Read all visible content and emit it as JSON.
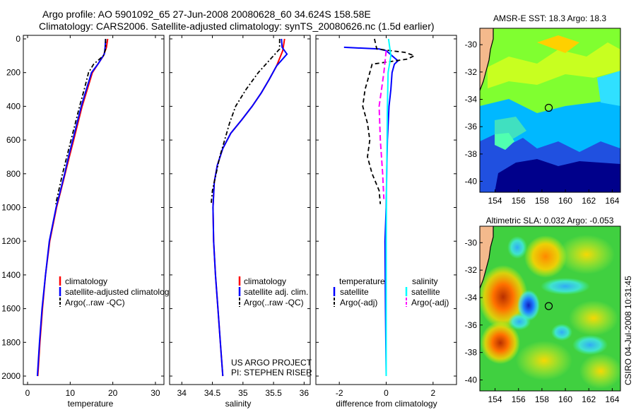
{
  "title_line1": "Argo profile: AO 5901092_65 27-Jun-2008 20080628_60 34.624S 158.58E",
  "title_line2": "Climatology: CARS2006. Satellite-adjusted climatology: synTS_20080626.nc (1.5d earlier)",
  "side_label": "CSIRO 04-Jul-2008 10:31:45",
  "colors": {
    "red": "#ff0000",
    "blue": "#0000ff",
    "black": "#000000",
    "cyan": "#00ffff",
    "magenta": "#ff00ff",
    "land": "#f4b98c",
    "sea_dark": "#00008b"
  },
  "chart_data": [
    {
      "type": "line",
      "xlabel": "temperature",
      "ylabel": "",
      "xlim": [
        -1,
        32
      ],
      "ylim": [
        2000,
        0
      ],
      "xticks": [
        "0",
        "10",
        "20",
        "30"
      ],
      "yticks": [
        "0",
        "200",
        "400",
        "600",
        "800",
        "1000",
        "1200",
        "1400",
        "1600",
        "1800",
        "2000"
      ],
      "legend": [
        "climatology",
        "satellite-adjusted climatology",
        "Argo(..raw -QC)"
      ],
      "series": [
        {
          "name": "climatology",
          "color": "red",
          "dash": "",
          "points": [
            [
              18.8,
              0
            ],
            [
              18.5,
              50
            ],
            [
              17.8,
              100
            ],
            [
              16.5,
              150
            ],
            [
              15.2,
              200
            ],
            [
              14,
              300
            ],
            [
              12.8,
              400
            ],
            [
              11.8,
              500
            ],
            [
              10.8,
              600
            ],
            [
              9.8,
              700
            ],
            [
              8.8,
              800
            ],
            [
              7.8,
              900
            ],
            [
              6.8,
              1000
            ],
            [
              5.2,
              1200
            ],
            [
              4.2,
              1400
            ],
            [
              3.5,
              1600
            ],
            [
              2.9,
              1800
            ],
            [
              2.4,
              2000
            ]
          ]
        },
        {
          "name": "satellite-adjusted",
          "color": "blue",
          "dash": "",
          "points": [
            [
              18.3,
              0
            ],
            [
              18.2,
              50
            ],
            [
              18,
              90
            ],
            [
              16.5,
              150
            ],
            [
              15,
              200
            ],
            [
              13.8,
              300
            ],
            [
              12.6,
              400
            ],
            [
              11.6,
              500
            ],
            [
              10.6,
              600
            ],
            [
              9.6,
              700
            ],
            [
              8.7,
              800
            ],
            [
              7.7,
              900
            ],
            [
              6.7,
              1000
            ],
            [
              5.1,
              1200
            ],
            [
              4.2,
              1400
            ],
            [
              3.4,
              1600
            ],
            [
              2.8,
              1800
            ],
            [
              2.3,
              2000
            ]
          ]
        },
        {
          "name": "argo",
          "color": "black",
          "dash": "6,3,2,3",
          "points": [
            [
              18.3,
              0
            ],
            [
              18.3,
              60
            ],
            [
              17.8,
              100
            ],
            [
              15.5,
              150
            ],
            [
              14.3,
              200
            ],
            [
              13.3,
              300
            ],
            [
              12.2,
              400
            ],
            [
              11.2,
              500
            ],
            [
              10.2,
              600
            ],
            [
              9.2,
              700
            ],
            [
              8.2,
              800
            ],
            [
              7.3,
              900
            ],
            [
              6.6,
              980
            ]
          ]
        }
      ]
    },
    {
      "type": "line",
      "xlabel": "salinity",
      "ylabel": "",
      "xlim": [
        33.8,
        36.1
      ],
      "ylim": [
        2000,
        0
      ],
      "xticks": [
        "34",
        "34.5",
        "35",
        "35.5",
        "36"
      ],
      "yticks": [],
      "legend": [
        "climatology",
        "satellite adj. clim.",
        "Argo(..raw -QC)"
      ],
      "annotations": [
        "US ARGO PROJECT",
        "PI: STEPHEN RISER"
      ],
      "series": [
        {
          "name": "climatology",
          "color": "red",
          "dash": "",
          "points": [
            [
              35.68,
              0
            ],
            [
              35.65,
              70
            ],
            [
              35.55,
              160
            ],
            [
              35.43,
              240
            ],
            [
              35.3,
              320
            ],
            [
              35.15,
              400
            ],
            [
              34.98,
              480
            ],
            [
              34.8,
              560
            ],
            [
              34.67,
              650
            ],
            [
              34.58,
              750
            ],
            [
              34.53,
              850
            ],
            [
              34.51,
              1000
            ],
            [
              34.52,
              1200
            ],
            [
              34.55,
              1400
            ],
            [
              34.59,
              1600
            ],
            [
              34.63,
              1800
            ],
            [
              34.67,
              2000
            ]
          ]
        },
        {
          "name": "satellite-adjusted",
          "color": "blue",
          "dash": "",
          "points": [
            [
              35.63,
              0
            ],
            [
              35.64,
              50
            ],
            [
              35.72,
              90
            ],
            [
              35.55,
              160
            ],
            [
              35.43,
              240
            ],
            [
              35.3,
              320
            ],
            [
              35.15,
              400
            ],
            [
              34.98,
              480
            ],
            [
              34.8,
              560
            ],
            [
              34.67,
              650
            ],
            [
              34.58,
              750
            ],
            [
              34.53,
              850
            ],
            [
              34.51,
              1000
            ],
            [
              34.52,
              1200
            ],
            [
              34.55,
              1400
            ],
            [
              34.59,
              1600
            ],
            [
              34.63,
              1800
            ],
            [
              34.67,
              2000
            ]
          ]
        },
        {
          "name": "argo",
          "color": "black",
          "dash": "6,3,2,3",
          "points": [
            [
              35.6,
              0
            ],
            [
              35.6,
              60
            ],
            [
              35.5,
              100
            ],
            [
              35.25,
              200
            ],
            [
              35.05,
              300
            ],
            [
              34.88,
              400
            ],
            [
              34.78,
              500
            ],
            [
              34.7,
              600
            ],
            [
              34.62,
              700
            ],
            [
              34.56,
              800
            ],
            [
              34.5,
              900
            ],
            [
              34.48,
              980
            ]
          ]
        }
      ]
    },
    {
      "type": "line",
      "xlabel": "difference from climatology",
      "ylabel": "",
      "xlim": [
        -3,
        3
      ],
      "ylim": [
        2000,
        0
      ],
      "xticks": [
        "-2",
        "0",
        "2"
      ],
      "yticks": [],
      "legend_headers": [
        "temperature",
        "salinity"
      ],
      "legend": [
        "satellite",
        "Argo(-adj)",
        "satellite",
        "Argo(-adj)"
      ],
      "series": [
        {
          "name": "temperature satellite",
          "color": "blue",
          "dash": "",
          "points": [
            [
              -1.8,
              50
            ],
            [
              -0.3,
              60
            ],
            [
              0,
              70
            ],
            [
              0.5,
              130
            ],
            [
              0.35,
              150
            ],
            [
              0.25,
              200
            ],
            [
              0.2,
              300
            ],
            [
              0.12,
              400
            ],
            [
              0.05,
              600
            ],
            [
              0.02,
              800
            ],
            [
              0,
              1000
            ],
            [
              -0.05,
              1200
            ],
            [
              -0.03,
              1600
            ],
            [
              0,
              2000
            ]
          ]
        },
        {
          "name": "temperature argo",
          "color": "black",
          "dash": "6,4",
          "points": [
            [
              -0.5,
              0
            ],
            [
              -0.4,
              60
            ],
            [
              0.8,
              80
            ],
            [
              1.2,
              100
            ],
            [
              0.9,
              120
            ],
            [
              -0.6,
              150
            ],
            [
              -0.8,
              250
            ],
            [
              -0.9,
              300
            ],
            [
              -1,
              400
            ],
            [
              -0.8,
              500
            ],
            [
              -0.7,
              600
            ],
            [
              -0.8,
              700
            ],
            [
              -0.6,
              800
            ],
            [
              -0.3,
              900
            ],
            [
              -0.25,
              980
            ]
          ]
        },
        {
          "name": "salinity satellite",
          "color": "cyan",
          "dash": "",
          "points": [
            [
              0.1,
              0
            ],
            [
              0.2,
              100
            ],
            [
              0.08,
              200
            ],
            [
              0.05,
              400
            ],
            [
              0.02,
              800
            ],
            [
              0,
              1200
            ],
            [
              0,
              2000
            ]
          ]
        },
        {
          "name": "salinity argo",
          "color": "magenta",
          "dash": "8,4",
          "points": [
            [
              0,
              70
            ],
            [
              -0.1,
              200
            ],
            [
              -0.2,
              300
            ],
            [
              -0.3,
              400
            ],
            [
              -0.25,
              600
            ],
            [
              -0.15,
              800
            ],
            [
              -0.1,
              950
            ]
          ]
        }
      ]
    },
    {
      "type": "heatmap",
      "title": "AMSR-E SST: 18.3 Argo: 18.3",
      "xlim": [
        152.7,
        164.7
      ],
      "ylim": [
        -40.8,
        -28.8
      ],
      "xticks": [
        "154",
        "156",
        "158",
        "160",
        "162",
        "164"
      ],
      "yticks": [
        "-30",
        "-32",
        "-34",
        "-36",
        "-38",
        "-40"
      ],
      "marker": [
        158.58,
        -34.62
      ]
    },
    {
      "type": "heatmap",
      "title": "Altimetric SLA: 0.032 Argo: -0.053",
      "xlim": [
        152.7,
        164.7
      ],
      "ylim": [
        -40.8,
        -28.8
      ],
      "xticks": [
        "154",
        "156",
        "158",
        "160",
        "162",
        "164"
      ],
      "yticks": [
        "-30",
        "-32",
        "-34",
        "-36",
        "-38",
        "-40"
      ],
      "marker": [
        158.58,
        -34.62
      ]
    }
  ]
}
